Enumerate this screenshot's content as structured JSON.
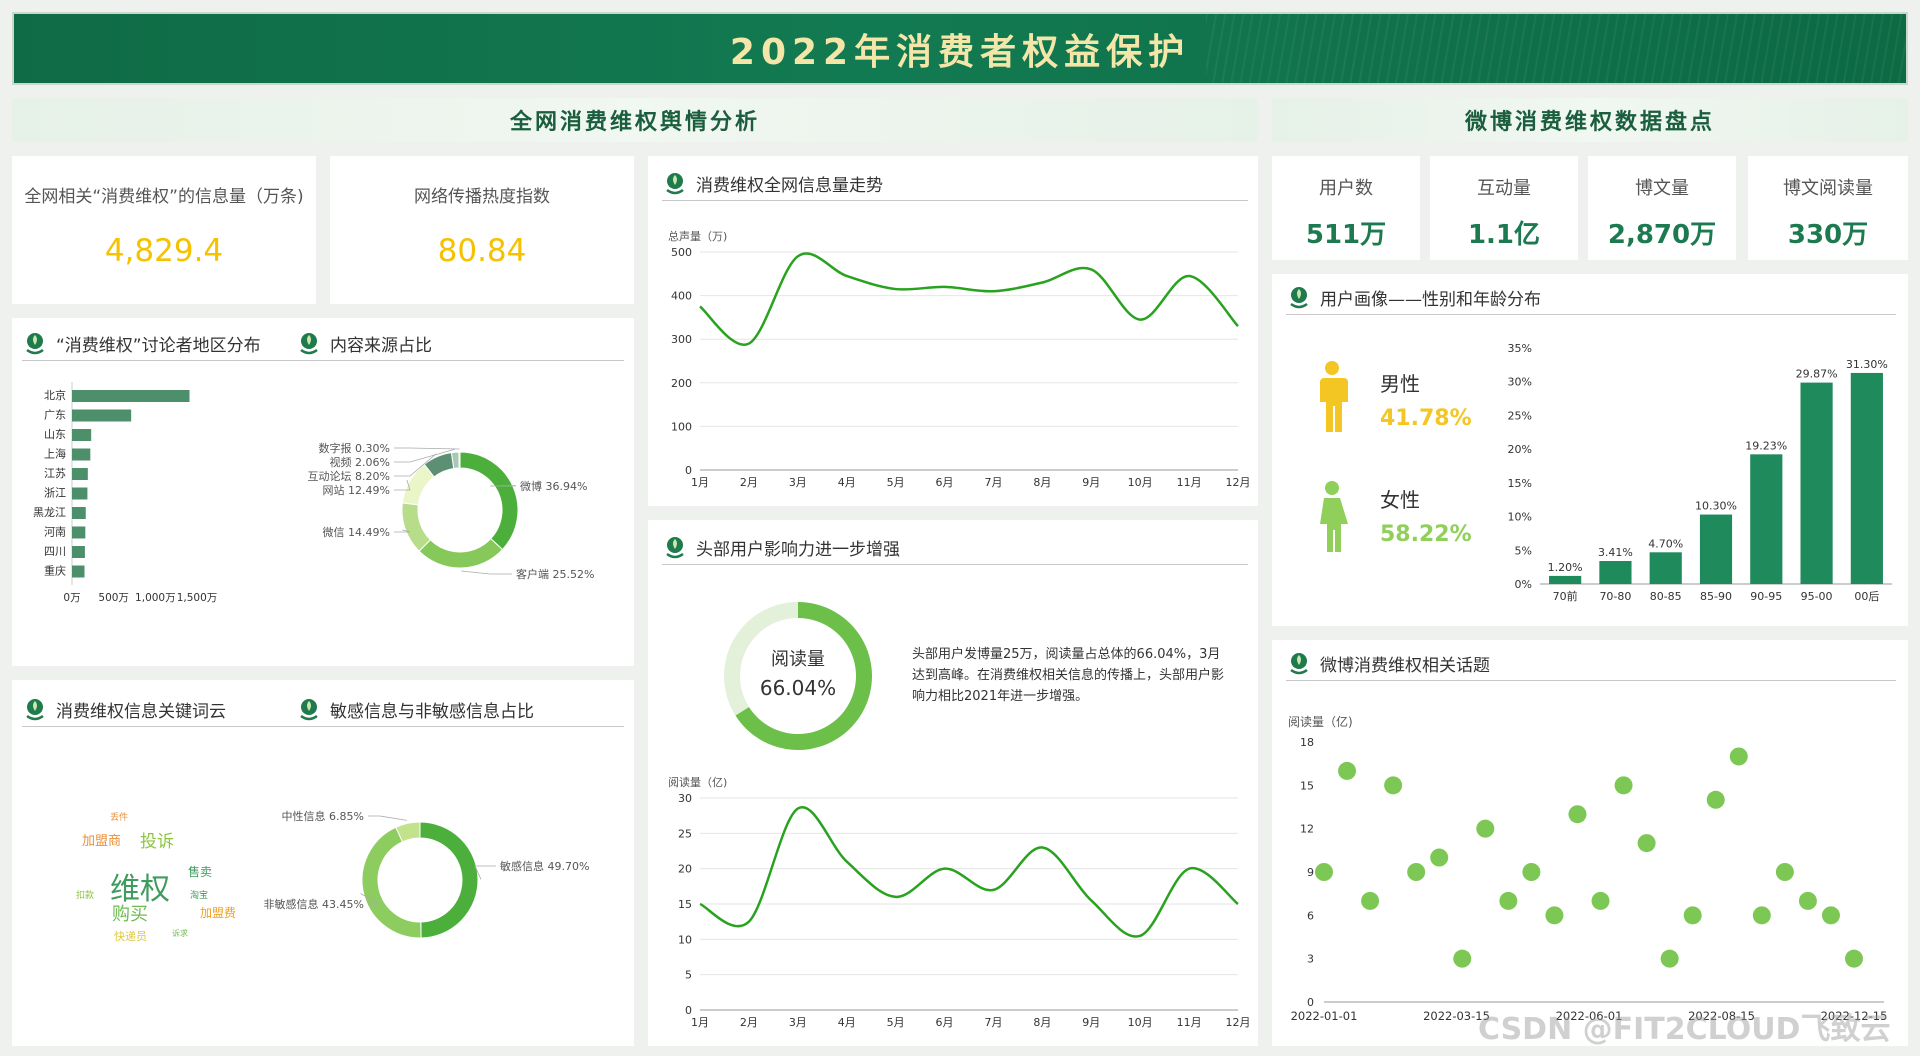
{
  "header": {
    "title": "2022年消费者权益保护"
  },
  "sections": {
    "left": "全网消费维权舆情分析",
    "right": "微博消费维权数据盘点"
  },
  "kpis": [
    {
      "label": "全网相关“消费维权”的信息量（万条)",
      "value": "4,829.4"
    },
    {
      "label": "网络传播热度指数",
      "value": "80.84"
    }
  ],
  "weibo_kpis": [
    {
      "label": "用户数",
      "value": "511万"
    },
    {
      "label": "互动量",
      "value": "1.1亿"
    },
    {
      "label": "博文量",
      "value": "2,870万"
    },
    {
      "label": "博文阅读量",
      "value": "330万"
    }
  ],
  "panels": {
    "region": "“消费维权”讨论者地区分布",
    "source": "内容来源占比",
    "trend": "消费维权全网信息量走势",
    "influence": "头部用户影响力进一步增强",
    "wordcloud": "消费维权信息关键词云",
    "sensitive": "敏感信息与非敏感信息占比",
    "portrait": "用户画像——性别和年龄分布",
    "topics": "微博消费维权相关话题"
  },
  "gender": {
    "male_label": "男性",
    "male_value": "41.78%",
    "female_label": "女性",
    "female_value": "58.22%"
  },
  "influence": {
    "donut_label": "阅读量",
    "donut_value": "66.04%",
    "donut_fraction": 0.6604,
    "text": "头部用户发博量25万，阅读量占总体的66.04%，3月达到高峰。在消费维权相关信息的传播上，头部用户影响力相比2021年进一步增强。"
  },
  "wordcloud": [
    {
      "text": "维权",
      "color": "#3f9b5e"
    },
    {
      "text": "投诉",
      "color": "#8cc63f"
    },
    {
      "text": "加盟商",
      "color": "#e8903a"
    },
    {
      "text": "购买",
      "color": "#6dbb52"
    },
    {
      "text": "售卖",
      "color": "#3f9b5e"
    },
    {
      "text": "加盟费",
      "color": "#f0a020"
    },
    {
      "text": "快递员",
      "color": "#e0c840"
    },
    {
      "text": "淘宝",
      "color": "#3f9b5e"
    },
    {
      "text": "扣款",
      "color": "#8cc63f"
    },
    {
      "text": "丢件",
      "color": "#e8903a"
    },
    {
      "text": "诉求",
      "color": "#6dbb52"
    }
  ],
  "watermark": "CSDN @FIT2CLOUD飞致云",
  "chart_data": [
    {
      "id": "region",
      "type": "bar",
      "orientation": "horizontal",
      "categories": [
        "北京",
        "广东",
        "山东",
        "上海",
        "江苏",
        "浙江",
        "黑龙江",
        "河南",
        "四川",
        "重庆"
      ],
      "values": [
        1410,
        710,
        230,
        220,
        190,
        185,
        165,
        160,
        155,
        150
      ],
      "xlim": [
        0,
        1500
      ],
      "xticks": [
        "0万",
        "500万",
        "1,000万",
        "1,500万"
      ],
      "color": "#4e8f6b"
    },
    {
      "id": "source",
      "type": "pie",
      "donut": true,
      "slices": [
        {
          "name": "微博",
          "value": 36.94,
          "label": "微博 36.94%",
          "color": "#4caf3c"
        },
        {
          "name": "客户端",
          "value": 25.52,
          "label": "客户端 25.52%",
          "color": "#86c85a"
        },
        {
          "name": "微信",
          "value": 14.49,
          "label": "微信 14.49%",
          "color": "#b7dd8a"
        },
        {
          "name": "网站",
          "value": 12.49,
          "label": "网站 12.49%",
          "color": "#eaf5c8"
        },
        {
          "name": "互动论坛",
          "value": 8.2,
          "label": "互动论坛 8.20%",
          "color": "#5d8f74"
        },
        {
          "name": "视频",
          "value": 2.06,
          "label": "视频 2.06%",
          "color": "#a8c8b4"
        },
        {
          "name": "数字报",
          "value": 0.3,
          "label": "数字报 0.30%",
          "color": "#3d6e55"
        }
      ]
    },
    {
      "id": "trend",
      "type": "line",
      "ylabel": "总声量（万)",
      "categories": [
        "1月",
        "2月",
        "3月",
        "4月",
        "5月",
        "6月",
        "7月",
        "8月",
        "9月",
        "10月",
        "11月",
        "12月"
      ],
      "values": [
        375,
        290,
        490,
        445,
        415,
        420,
        410,
        430,
        460,
        345,
        445,
        330
      ],
      "ylim": [
        0,
        500
      ],
      "yticks": [
        0,
        100,
        200,
        300,
        400,
        500
      ],
      "color": "#28a21f"
    },
    {
      "id": "sensitive",
      "type": "pie",
      "donut": true,
      "slices": [
        {
          "name": "敏感信息",
          "value": 49.7,
          "label": "敏感信息 49.70%",
          "color": "#4caf3c"
        },
        {
          "name": "非敏感信息",
          "value": 43.45,
          "label": "非敏感信息 43.45%",
          "color": "#8dcc5f"
        },
        {
          "name": "中性信息",
          "value": 6.85,
          "label": "中性信息 6.85%",
          "color": "#c2e28c"
        }
      ]
    },
    {
      "id": "read",
      "type": "line",
      "ylabel": "阅读量（亿)",
      "categories": [
        "1月",
        "2月",
        "3月",
        "4月",
        "5月",
        "6月",
        "7月",
        "8月",
        "9月",
        "10月",
        "11月",
        "12月"
      ],
      "values": [
        15,
        12.5,
        28.5,
        21,
        16,
        20,
        17,
        23,
        15.5,
        10.5,
        20,
        15
      ],
      "ylim": [
        0,
        30
      ],
      "yticks": [
        0,
        5,
        10,
        15,
        20,
        25,
        30
      ],
      "color": "#28a21f"
    },
    {
      "id": "age",
      "type": "bar",
      "categories": [
        "70前",
        "70-80",
        "80-85",
        "85-90",
        "90-95",
        "95-00",
        "00后"
      ],
      "values": [
        1.2,
        3.41,
        4.7,
        10.3,
        19.23,
        29.87,
        31.3
      ],
      "labels": [
        "1.20%",
        "3.41%",
        "4.70%",
        "10.30%",
        "19.23%",
        "29.87%",
        "31.30%"
      ],
      "ylim": [
        0,
        35
      ],
      "yticks": [
        "0%",
        "5%",
        "10%",
        "15%",
        "20%",
        "25%",
        "30%",
        "35%"
      ],
      "color": "#1f8a5c"
    },
    {
      "id": "topics",
      "type": "scatter",
      "ylabel": "阅读量（亿)",
      "xticks": [
        "2022-01-01",
        "2022-03-15",
        "2022-06-01",
        "2022-08-15",
        "2022-12-15"
      ],
      "values": [
        9,
        16,
        7,
        15,
        9,
        10,
        3,
        12,
        7,
        9,
        6,
        13,
        7,
        15,
        11,
        3,
        6,
        14,
        17,
        6,
        9,
        7,
        6,
        3
      ],
      "ylim": [
        0,
        18
      ],
      "yticks": [
        0,
        3,
        6,
        9,
        12,
        15,
        18
      ],
      "color": "#7dc855"
    }
  ]
}
